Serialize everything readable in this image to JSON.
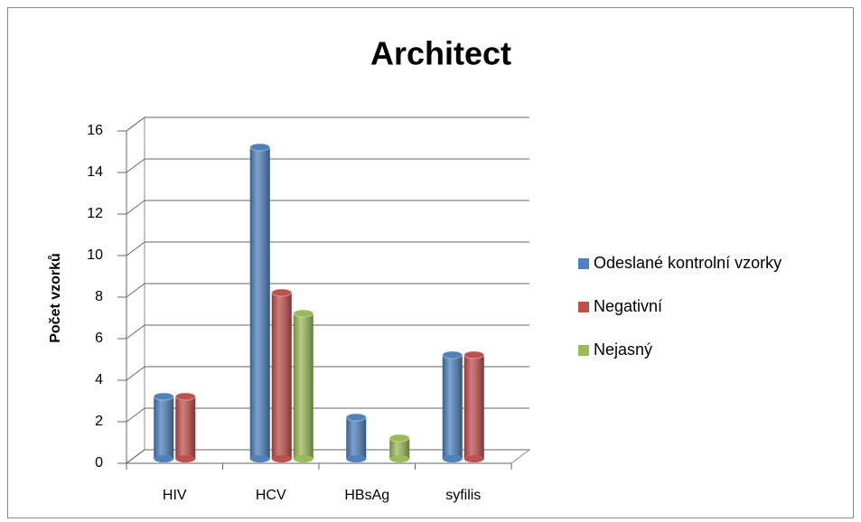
{
  "chart_data": {
    "type": "bar3d",
    "title": "Architect",
    "y_label": "Počet vzorků",
    "categories": [
      "HIV",
      "HCV",
      "HBsAg",
      "syfilis"
    ],
    "series": [
      {
        "name": "Odeslané kontrolní vzorky",
        "color": "#4f81bd",
        "values": [
          3,
          15,
          2,
          5
        ]
      },
      {
        "name": "Negativní",
        "color": "#c0504d",
        "values": [
          3,
          8,
          null,
          5
        ]
      },
      {
        "name": "Nejasný",
        "color": "#9bbb59",
        "values": [
          null,
          7,
          1,
          null
        ]
      }
    ],
    "ylim": [
      0,
      16
    ],
    "yticks": [
      0,
      2,
      4,
      6,
      8,
      10,
      12,
      14,
      16
    ],
    "grid": true,
    "legend": "right"
  }
}
